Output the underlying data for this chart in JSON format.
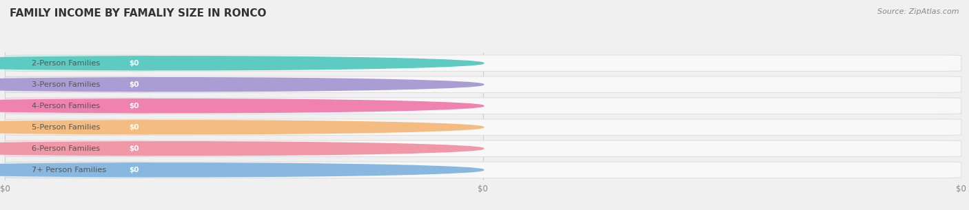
{
  "title": "FAMILY INCOME BY FAMALIY SIZE IN RONCO",
  "source": "Source: ZipAtlas.com",
  "categories": [
    "2-Person Families",
    "3-Person Families",
    "4-Person Families",
    "5-Person Families",
    "6-Person Families",
    "7+ Person Families"
  ],
  "values": [
    0,
    0,
    0,
    0,
    0,
    0
  ],
  "bar_colors": [
    "#5ecbc3",
    "#a99dd4",
    "#f082b0",
    "#f5bc82",
    "#f097a8",
    "#88b8e0"
  ],
  "background_color": "#f0f0f0",
  "bar_bg_color": "#ffffff",
  "bar_border_color": "#e0e0e0",
  "title_fontsize": 11,
  "source_fontsize": 8,
  "xtick_labels": [
    "$0",
    "$0",
    "$0"
  ],
  "xtick_positions": [
    0.0,
    0.5,
    1.0
  ]
}
